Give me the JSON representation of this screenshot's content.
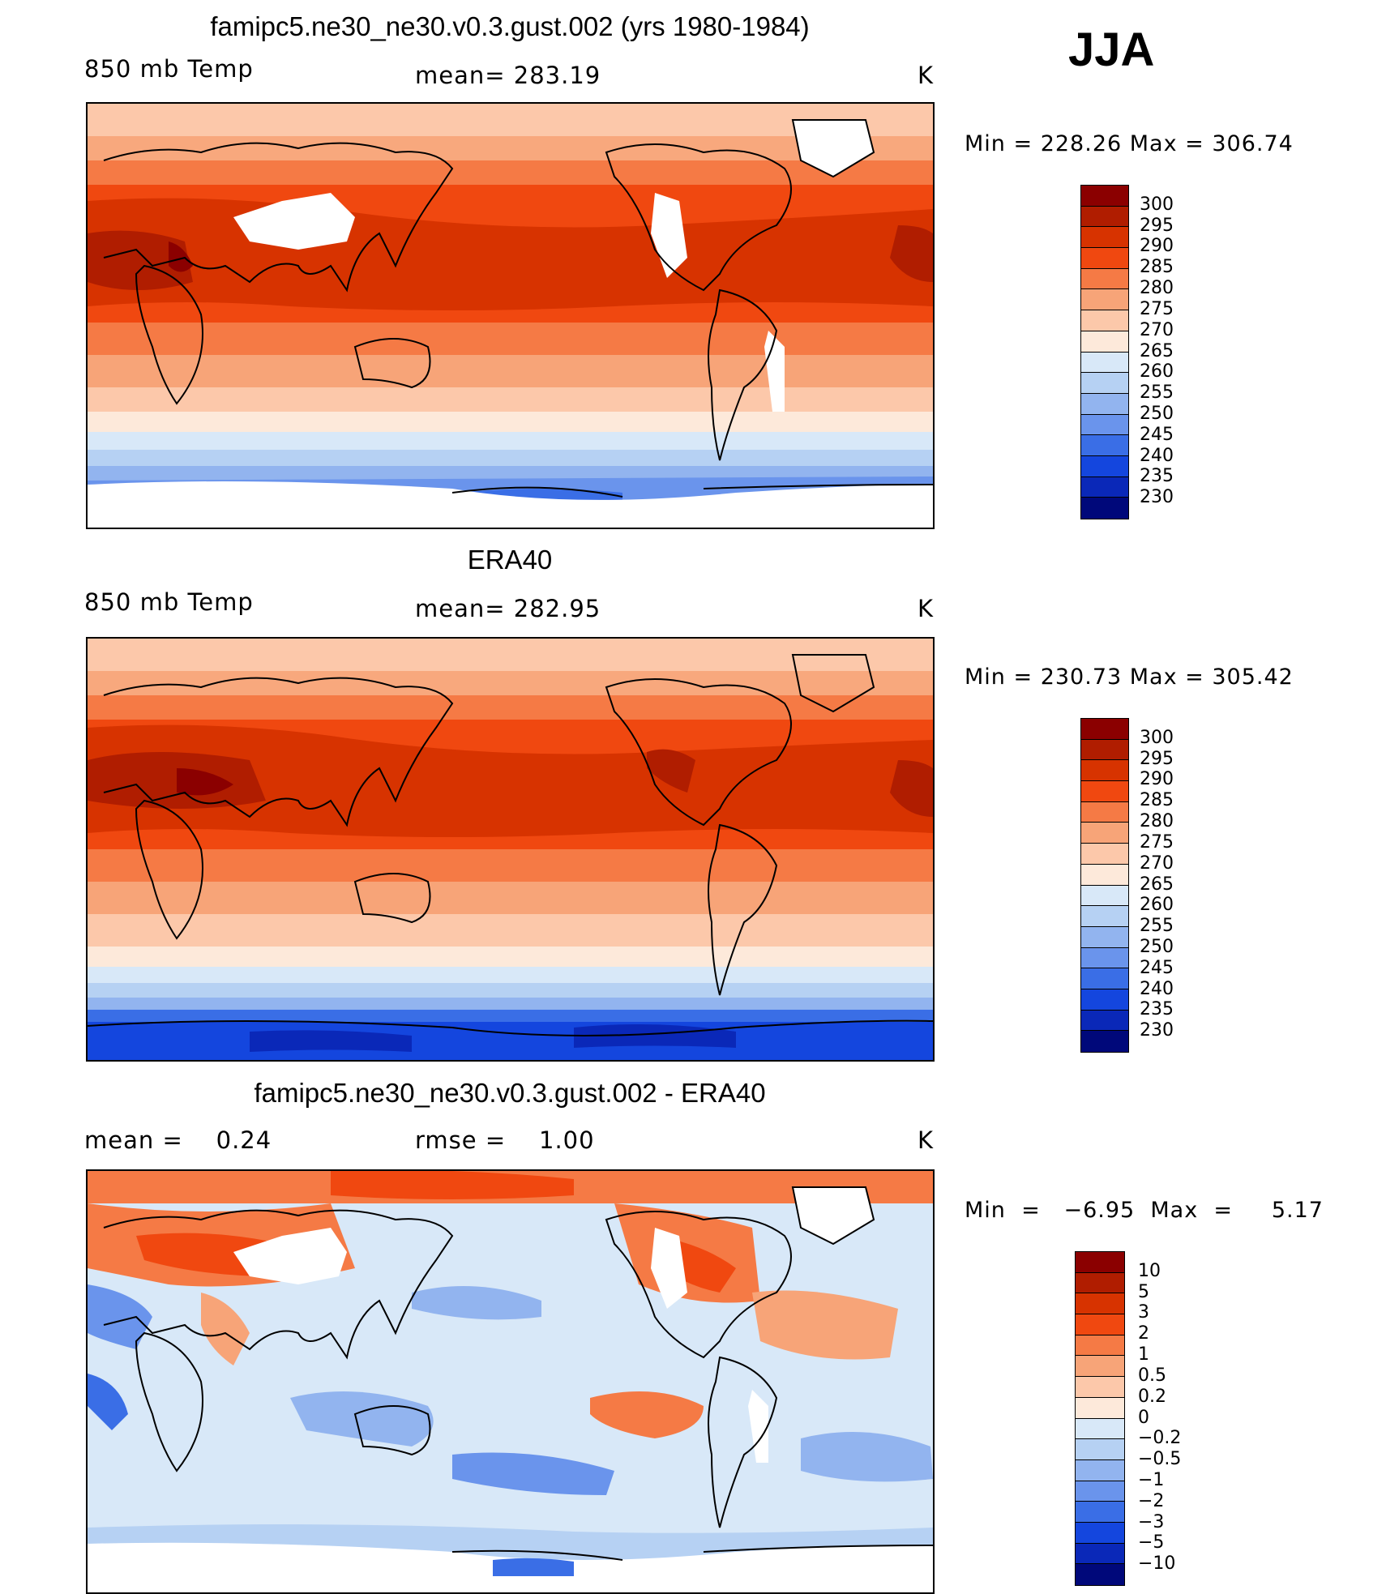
{
  "season": "JJA",
  "panels": [
    {
      "id": "model",
      "title": "famipc5.ne30_ne30.v0.3.gust.002 (yrs 1980-1984)",
      "left_label": "850 mb Temp",
      "center_label": "mean= 283.19",
      "units": "K",
      "minmax": "Min  =  228.26  Max  =  306.74",
      "colorbar": {
        "colors": [
          "#8b0000",
          "#b01d00",
          "#d73300",
          "#f04810",
          "#f57a45",
          "#f7a478",
          "#fcc8aa",
          "#fde9da",
          "#d8e8f8",
          "#b6d1f3",
          "#92b4ef",
          "#6a94ec",
          "#3a6ee6",
          "#1446de",
          "#0a28b8",
          "#00087a"
        ],
        "labels": [
          "300",
          "295",
          "290",
          "285",
          "280",
          "275",
          "270",
          "265",
          "260",
          "255",
          "250",
          "245",
          "240",
          "235",
          "230"
        ]
      }
    },
    {
      "id": "obs",
      "title": "ERA40",
      "left_label": "850 mb Temp",
      "center_label": "mean= 282.95",
      "units": "K",
      "minmax": "Min  =  230.73  Max  =  305.42",
      "colorbar": {
        "colors": [
          "#8b0000",
          "#b01d00",
          "#d73300",
          "#f04810",
          "#f57a45",
          "#f7a478",
          "#fcc8aa",
          "#fde9da",
          "#d8e8f8",
          "#b6d1f3",
          "#92b4ef",
          "#6a94ec",
          "#3a6ee6",
          "#1446de",
          "#0a28b8",
          "#00087a"
        ],
        "labels": [
          "300",
          "295",
          "290",
          "285",
          "280",
          "275",
          "270",
          "265",
          "260",
          "255",
          "250",
          "245",
          "240",
          "235",
          "230"
        ]
      }
    },
    {
      "id": "diff",
      "title": "famipc5.ne30_ne30.v0.3.gust.002 - ERA40",
      "left_label": "mean =    0.24",
      "center_label": "rmse =    1.00",
      "units": "K",
      "minmax": "Min  =   −6.95  Max  =     5.17",
      "colorbar": {
        "colors": [
          "#8b0000",
          "#b01d00",
          "#d73300",
          "#f04810",
          "#f57a45",
          "#f7a478",
          "#fcc8aa",
          "#fde9da",
          "#d8e8f8",
          "#b6d1f3",
          "#92b4ef",
          "#6a94ec",
          "#3a6ee6",
          "#1446de",
          "#0a28b8",
          "#00087a"
        ],
        "labels": [
          "10",
          "5",
          "3",
          "2",
          "1",
          "0.5",
          "0.2",
          "0",
          "−0.2",
          "−0.5",
          "−1",
          "−2",
          "−3",
          "−5",
          "−10"
        ]
      }
    }
  ]
}
